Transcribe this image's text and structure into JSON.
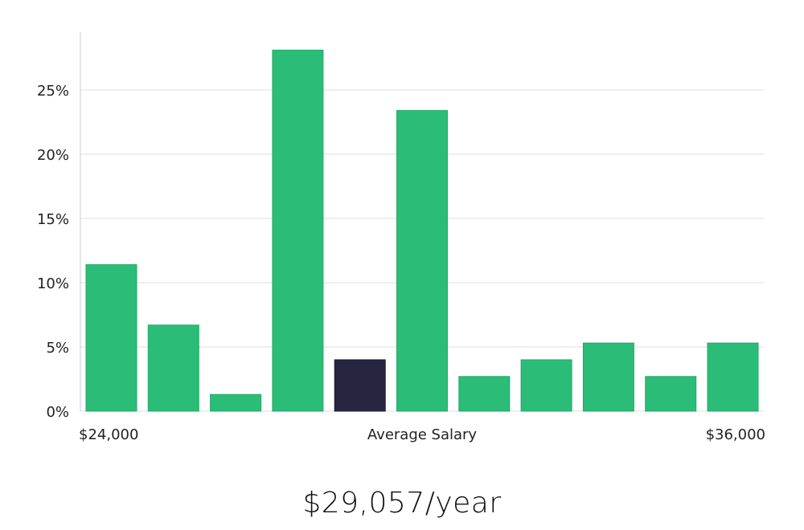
{
  "chart_data": {
    "type": "bar",
    "title": "",
    "xlabel": "Average Salary",
    "ylabel": "",
    "x_range_labels": [
      "$24,000",
      "$36,000"
    ],
    "y_ticks": [
      "0%",
      "5%",
      "10%",
      "15%",
      "20%",
      "25%"
    ],
    "ylim": [
      0,
      29.5
    ],
    "grid": true,
    "values": [
      11.4,
      6.7,
      1.3,
      28.1,
      4.0,
      23.4,
      2.7,
      4.0,
      5.3,
      2.7,
      5.3
    ],
    "highlight_index": 4,
    "colors": {
      "bar": "#2bbd77",
      "highlight": "#272540",
      "grid": "#dddddd",
      "axis": "#cccccc"
    }
  },
  "salary": {
    "value": "$29,057/year"
  }
}
